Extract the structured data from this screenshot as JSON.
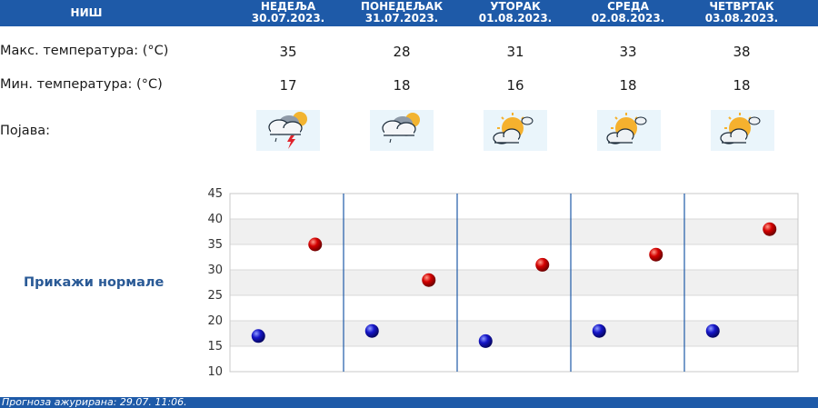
{
  "header": {
    "city": "НИШ",
    "days": [
      {
        "name": "НЕДЕЉА",
        "date": "30.07.2023."
      },
      {
        "name": "ПОНЕДЕЉАК",
        "date": "31.07.2023."
      },
      {
        "name": "УТОРАК",
        "date": "01.08.2023."
      },
      {
        "name": "СРЕДА",
        "date": "02.08.2023."
      },
      {
        "name": "ЧЕТВРТАК",
        "date": "03.08.2023."
      }
    ]
  },
  "rows": {
    "max_label": "Макс. температура: (°C)",
    "min_label": "Мин. температура: (°C)",
    "phen_label": "Појава:",
    "max": [
      "35",
      "28",
      "31",
      "33",
      "38"
    ],
    "min": [
      "17",
      "18",
      "16",
      "18",
      "18"
    ],
    "icons": [
      "cloud-thunderstorm-icon",
      "cloud-rain-sun-icon",
      "sun-cloud-icon",
      "sun-cloud-icon",
      "sun-cloud-icon"
    ]
  },
  "normals_link": "Прикажи нормале",
  "footer": "Прогноза ажурирана:  29.07.  11:06.",
  "colors": {
    "header": "#1e5aa8",
    "max_dot": "#d40000",
    "min_dot": "#1616c8",
    "divider": "#1e5aa8"
  },
  "chart_data": {
    "type": "scatter",
    "categories": [
      "НЕДЕЉА",
      "ПОНЕДЕЉАК",
      "УТОРАК",
      "СРЕДА",
      "ЧЕТВРТАК"
    ],
    "yticks": [
      "45",
      "40",
      "35",
      "30",
      "25",
      "20",
      "15",
      "10"
    ],
    "ylim": [
      10,
      45
    ],
    "series": [
      {
        "values": [
          35,
          28,
          31,
          33,
          38
        ]
      },
      {
        "values": [
          17,
          18,
          16,
          18,
          18
        ]
      }
    ],
    "grid": true
  }
}
